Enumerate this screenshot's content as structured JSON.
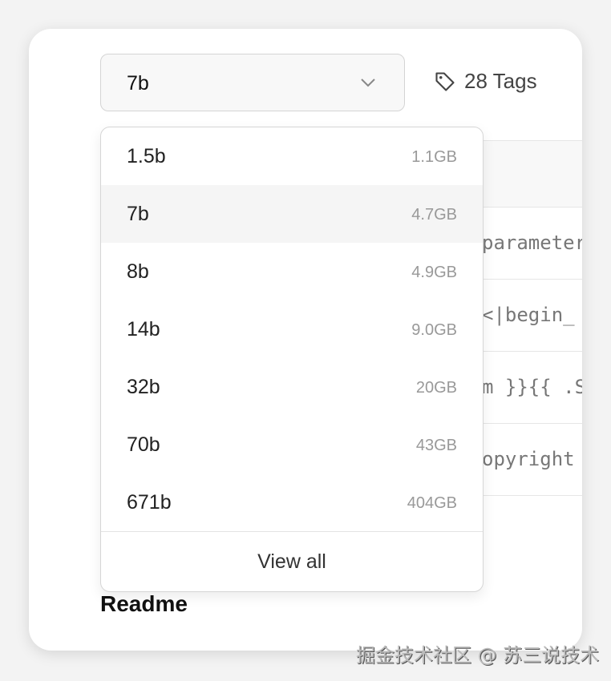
{
  "selector": {
    "value": "7b"
  },
  "tags": {
    "label": "28 Tags",
    "icon": "tag-icon"
  },
  "table_rows": [
    "parameter",
    "<|begin_",
    "m }}{{ .S",
    "opyright"
  ],
  "menu": {
    "options": [
      {
        "name": "1.5b",
        "size": "1.1GB"
      },
      {
        "name": "7b",
        "size": "4.7GB",
        "selected": true
      },
      {
        "name": "8b",
        "size": "4.9GB"
      },
      {
        "name": "14b",
        "size": "9.0GB"
      },
      {
        "name": "32b",
        "size": "20GB"
      },
      {
        "name": "70b",
        "size": "43GB"
      },
      {
        "name": "671b",
        "size": "404GB"
      }
    ],
    "view_all": "View all"
  },
  "readme": "Readme",
  "watermark": "掘金技术社区 @ 苏三说技术"
}
